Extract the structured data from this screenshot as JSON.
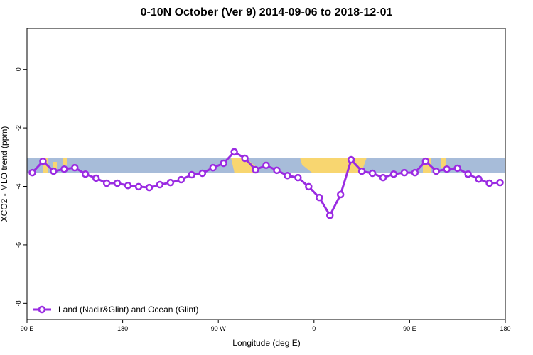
{
  "chart_data": {
    "type": "line",
    "title": "0-10N October (Ver 9)   2014-09-06 to 2018-12-01",
    "x_label": "Longitude (deg E)",
    "y_label": "XCO2 - MLO trend (ppm)",
    "x": [
      95,
      105,
      115,
      125,
      135,
      145,
      155,
      165,
      175,
      185,
      195,
      205,
      215,
      225,
      235,
      245,
      255,
      265,
      275,
      285,
      295,
      305,
      315,
      325,
      335,
      345,
      355,
      365,
      375,
      385,
      395,
      405,
      415,
      425,
      435,
      445,
      455,
      465,
      475,
      485,
      495,
      505,
      515,
      525,
      535
    ],
    "series": [
      {
        "name": "Land (Nadir&Glint) and Ocean (Glint)",
        "color": "#9a2be2",
        "values": [
          -3.53,
          -3.14,
          -3.48,
          -3.41,
          -3.36,
          -3.58,
          -3.72,
          -3.89,
          -3.89,
          -3.97,
          -4.01,
          -4.04,
          -3.94,
          -3.87,
          -3.77,
          -3.6,
          -3.55,
          -3.36,
          -3.21,
          -2.82,
          -3.04,
          -3.43,
          -3.28,
          -3.45,
          -3.63,
          -3.7,
          -4.01,
          -4.38,
          -4.99,
          -4.28,
          -3.09,
          -3.48,
          -3.55,
          -3.7,
          -3.58,
          -3.53,
          -3.53,
          -3.14,
          -3.48,
          -3.41,
          -3.38,
          -3.58,
          -3.75,
          -3.89,
          -3.87
        ]
      }
    ],
    "xlim": [
      90,
      540
    ],
    "xticks": [
      {
        "value": 90,
        "label": "90 E"
      },
      {
        "value": 180,
        "label": "180"
      },
      {
        "value": 270,
        "label": "90 W"
      },
      {
        "value": 360,
        "label": "0"
      },
      {
        "value": 450,
        "label": "90 E"
      },
      {
        "value": 540,
        "label": "180"
      }
    ],
    "ylim": [
      -8.55,
      1.4
    ],
    "yticks": [
      0,
      -2,
      -4,
      -6,
      -8
    ],
    "legend": "bottom-left"
  }
}
